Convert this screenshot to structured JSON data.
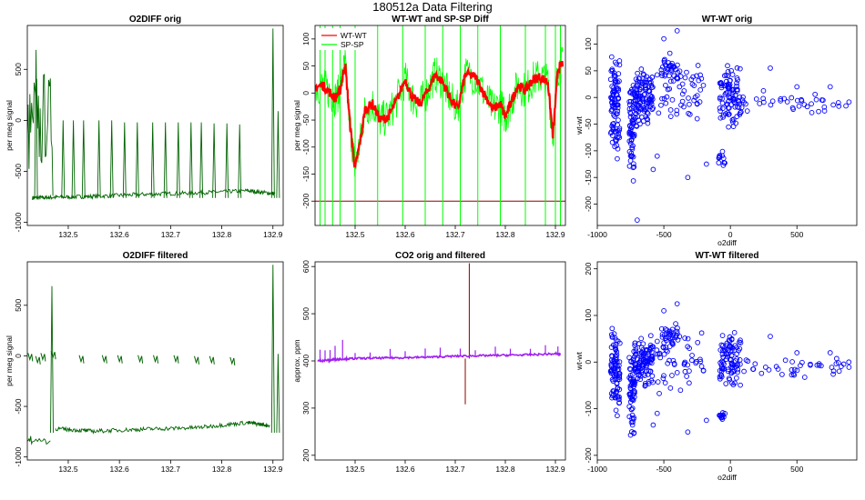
{
  "figure": {
    "title": "180512a   Data Filtering"
  },
  "colors": {
    "green": "#006400",
    "red": "#ff0000",
    "lime": "#00ff00",
    "blue": "#0000ff",
    "purple": "#a020f0",
    "darkred": "#8b0000"
  },
  "chart_data": [
    {
      "id": "p1",
      "type": "line",
      "title": "O2DIFF orig",
      "xlabel": "",
      "ylabel": "per meg signal",
      "xlim": [
        132.42,
        132.92
      ],
      "ylim": [
        -1030,
        930
      ],
      "xticks": [
        132.5,
        132.6,
        132.7,
        132.8,
        132.9
      ],
      "xtick_labels": [
        "132.5",
        "132.6",
        "132.7",
        "132.8",
        "132.9"
      ],
      "yticks": [
        -1000,
        -500,
        0,
        500
      ],
      "ytick_labels": [
        "-1000",
        "-500",
        "0",
        "500"
      ],
      "series": [
        {
          "name": "O2DIFF",
          "color": "#006400",
          "baseline": -760,
          "points": [
            [
              132.43,
              -760
            ],
            [
              132.47,
              -755
            ],
            [
              132.55,
              -745
            ],
            [
              132.65,
              -725
            ],
            [
              132.75,
              -710
            ],
            [
              132.85,
              -690
            ],
            [
              132.905,
              -720
            ]
          ],
          "start": [
            [
              132.42,
              -120
            ],
            [
              132.43,
              40
            ],
            [
              132.44,
              -80
            ],
            [
              132.45,
              40
            ],
            [
              132.46,
              0
            ],
            [
              132.47,
              -740
            ]
          ],
          "spikes": [
            [
              132.437,
              690
            ],
            [
              132.49,
              0
            ],
            [
              132.51,
              0
            ],
            [
              132.53,
              0
            ],
            [
              132.56,
              0
            ],
            [
              132.585,
              0
            ],
            [
              132.61,
              -20
            ],
            [
              132.635,
              -20
            ],
            [
              132.665,
              -20
            ],
            [
              132.69,
              -20
            ],
            [
              132.715,
              -20
            ],
            [
              132.74,
              -20
            ],
            [
              132.76,
              -20
            ],
            [
              132.785,
              -30
            ],
            [
              132.81,
              -30
            ],
            [
              132.835,
              -40
            ],
            [
              132.9,
              900
            ],
            [
              132.91,
              90
            ]
          ]
        }
      ]
    },
    {
      "id": "p2",
      "type": "line",
      "title": "WT-WT and SP-SP Diff",
      "xlabel": "",
      "ylabel": "per meg signal",
      "xlim": [
        132.42,
        132.92
      ],
      "ylim": [
        -245,
        125
      ],
      "xticks": [
        132.5,
        132.6,
        132.7,
        132.8,
        132.9
      ],
      "xtick_labels": [
        "132.5",
        "132.6",
        "132.7",
        "132.8",
        "132.9"
      ],
      "yticks": [
        -200,
        -150,
        -100,
        -50,
        0,
        50,
        100
      ],
      "ytick_labels": [
        "-200",
        "-150",
        "-100",
        "-50",
        "0",
        "50",
        "100"
      ],
      "hline": -200,
      "legend": [
        {
          "label": "WT-WT",
          "color": "#ff0000"
        },
        {
          "label": "SP-SP",
          "color": "#00ff00"
        }
      ],
      "series": [
        {
          "name": "WT-WT",
          "color": "#ff0000",
          "x": [
            132.42,
            132.435,
            132.45,
            132.46,
            132.47,
            132.48,
            132.49,
            132.5,
            132.51,
            132.52,
            132.535,
            132.55,
            132.565,
            132.58,
            132.6,
            132.615,
            132.63,
            132.645,
            132.66,
            132.675,
            132.69,
            132.705,
            132.72,
            132.74,
            132.76,
            132.775,
            132.79,
            132.8,
            132.81,
            132.825,
            132.84,
            132.855,
            132.87,
            132.885,
            132.895,
            132.905,
            132.915
          ],
          "y": [
            10,
            15,
            0,
            -10,
            5,
            55,
            -60,
            -140,
            -90,
            -30,
            -20,
            -50,
            -45,
            -20,
            25,
            -10,
            -20,
            5,
            35,
            20,
            -10,
            -30,
            35,
            30,
            -5,
            -30,
            -20,
            -45,
            -20,
            15,
            5,
            25,
            30,
            20,
            -80,
            45,
            55
          ]
        },
        {
          "name": "SP-SP",
          "color": "#00ff00",
          "spikes": [
            132.43,
            132.44,
            132.455,
            132.47,
            132.5,
            132.545,
            132.595,
            132.64,
            132.675,
            132.71,
            132.745,
            132.79,
            132.84,
            132.88,
            132.9,
            132.91
          ]
        }
      ]
    },
    {
      "id": "p3",
      "type": "scatter",
      "title": "WT-WT orig",
      "xlabel": "o2diff",
      "ylabel": "wt-wt",
      "xlim": [
        -1000,
        950
      ],
      "ylim": [
        -240,
        135
      ],
      "xticks": [
        -1000,
        -500,
        0,
        500
      ],
      "xtick_labels": [
        "-1000",
        "-500",
        "0",
        "500"
      ],
      "yticks": [
        -200,
        -150,
        -100,
        -50,
        0,
        50,
        100
      ],
      "ytick_labels": [
        "-200",
        "-150",
        "-100",
        "-50",
        "0",
        "50",
        "100"
      ],
      "color": "#0000ff",
      "clusters": [
        {
          "x": [
            -900,
            -830
          ],
          "y": [
            -110,
            80
          ],
          "n": 90
        },
        {
          "x": [
            -760,
            -720
          ],
          "y": [
            -175,
            40
          ],
          "n": 60
        },
        {
          "x": [
            -720,
            -580
          ],
          "y": [
            -60,
            60
          ],
          "n": 110
        },
        {
          "x": [
            -520,
            -380
          ],
          "y": [
            25,
            85
          ],
          "n": 35
        },
        {
          "x": [
            -560,
            -200
          ],
          "y": [
            -75,
            70
          ],
          "n": 50
        },
        {
          "x": [
            -80,
            80
          ],
          "y": [
            -60,
            70
          ],
          "n": 90
        },
        {
          "x": [
            -90,
            -40
          ],
          "y": [
            -130,
            -100
          ],
          "n": 12
        },
        {
          "x": [
            80,
            900
          ],
          "y": [
            -35,
            15
          ],
          "n": 40
        }
      ],
      "points": [
        [
          -400,
          125
        ],
        [
          -320,
          -150
        ],
        [
          -550,
          -110
        ],
        [
          -580,
          -135
        ],
        [
          -850,
          -75
        ],
        [
          -850,
          -115
        ],
        [
          -500,
          110
        ],
        [
          -180,
          -125
        ],
        [
          -700,
          -230
        ],
        [
          500,
          20
        ],
        [
          750,
          20
        ],
        [
          300,
          55
        ]
      ]
    },
    {
      "id": "p4",
      "type": "line",
      "title": "O2DIFF filtered",
      "xlabel": "",
      "ylabel": "per meg signal",
      "xlim": [
        132.42,
        132.92
      ],
      "ylim": [
        -1030,
        930
      ],
      "xticks": [
        132.5,
        132.6,
        132.7,
        132.8,
        132.9
      ],
      "xtick_labels": [
        "132.5",
        "132.6",
        "132.7",
        "132.8",
        "132.9"
      ],
      "yticks": [
        -1000,
        -500,
        0,
        500
      ],
      "ytick_labels": [
        "-1000",
        "-500",
        "0",
        "500"
      ],
      "series": [
        {
          "name": "O2DIFF",
          "color": "#006400",
          "baseline": -760,
          "points": [
            [
              132.475,
              -720
            ],
            [
              132.55,
              -745
            ],
            [
              132.65,
              -725
            ],
            [
              132.75,
              -710
            ],
            [
              132.85,
              -660
            ],
            [
              132.895,
              -690
            ]
          ],
          "start": [
            [
              132.42,
              -830
            ],
            [
              132.43,
              -850
            ],
            [
              132.45,
              -840
            ],
            [
              132.465,
              -840
            ]
          ],
          "segments": [
            [
              132.425,
              0
            ],
            [
              132.44,
              -30
            ],
            [
              132.45,
              0
            ],
            [
              132.47,
              20
            ],
            [
              132.525,
              -20
            ],
            [
              132.57,
              -20
            ],
            [
              132.6,
              -20
            ],
            [
              132.64,
              -20
            ],
            [
              132.67,
              -20
            ],
            [
              132.71,
              -20
            ],
            [
              132.75,
              -30
            ],
            [
              132.78,
              -30
            ],
            [
              132.82,
              -40
            ]
          ],
          "spikes": [
            [
              132.468,
              690
            ],
            [
              132.9,
              900
            ],
            [
              132.91,
              20
            ]
          ]
        }
      ]
    },
    {
      "id": "p5",
      "type": "line",
      "title": "CO2 orig and filtered",
      "xlabel": "",
      "ylabel": "approx. ppm",
      "xlim": [
        132.42,
        132.92
      ],
      "ylim": [
        190,
        610
      ],
      "xticks": [
        132.5,
        132.6,
        132.7,
        132.8,
        132.9
      ],
      "xtick_labels": [
        "132.5",
        "132.6",
        "132.7",
        "132.8",
        "132.9"
      ],
      "yticks": [
        200,
        300,
        400,
        500,
        600
      ],
      "ytick_labels": [
        "200",
        "300",
        "400",
        "500",
        "600"
      ],
      "series": [
        {
          "name": "CO2 orig",
          "color": "#8b0000",
          "spikes": [
            [
              132.728,
              607
            ],
            [
              132.72,
              308
            ]
          ]
        },
        {
          "name": "CO2 filtered",
          "color": "#a020f0",
          "x": [
            132.425,
            132.45,
            132.47,
            132.5,
            132.55,
            132.6,
            132.65,
            132.7,
            132.75,
            132.8,
            132.85,
            132.9,
            132.91
          ],
          "y": [
            400,
            402,
            404,
            405,
            406,
            407,
            408,
            410,
            411,
            412,
            413,
            415,
            414
          ],
          "bumps": [
            132.43,
            132.44,
            132.45,
            132.46,
            132.475,
            132.5,
            132.53,
            132.57,
            132.6,
            132.64,
            132.67,
            132.71,
            132.74,
            132.78,
            132.81,
            132.85,
            132.88,
            132.905
          ]
        }
      ]
    },
    {
      "id": "p6",
      "type": "scatter",
      "title": "WT-WT filtered",
      "xlabel": "o2diff",
      "ylabel": "wt-wt",
      "xlim": [
        -1000,
        950
      ],
      "ylim": [
        -210,
        215
      ],
      "xticks": [
        -1000,
        -500,
        0,
        500
      ],
      "xtick_labels": [
        "-1000",
        "-500",
        "0",
        "500"
      ],
      "yticks": [
        -200,
        -100,
        0,
        100,
        200
      ],
      "ytick_labels": [
        "-200",
        "-100",
        "0",
        "100",
        "200"
      ],
      "color": "#0000ff",
      "clusters": [
        {
          "x": [
            -900,
            -830
          ],
          "y": [
            -110,
            80
          ],
          "n": 90
        },
        {
          "x": [
            -760,
            -720
          ],
          "y": [
            -175,
            40
          ],
          "n": 60
        },
        {
          "x": [
            -720,
            -580
          ],
          "y": [
            -60,
            60
          ],
          "n": 110
        },
        {
          "x": [
            -520,
            -380
          ],
          "y": [
            25,
            85
          ],
          "n": 35
        },
        {
          "x": [
            -560,
            -200
          ],
          "y": [
            -75,
            70
          ],
          "n": 50
        },
        {
          "x": [
            -80,
            80
          ],
          "y": [
            -60,
            70
          ],
          "n": 90
        },
        {
          "x": [
            -90,
            -40
          ],
          "y": [
            -130,
            -100
          ],
          "n": 12
        },
        {
          "x": [
            80,
            900
          ],
          "y": [
            -35,
            15
          ],
          "n": 40
        }
      ],
      "points": [
        [
          -400,
          125
        ],
        [
          -320,
          -150
        ],
        [
          -550,
          -110
        ],
        [
          -580,
          -135
        ],
        [
          -850,
          -75
        ],
        [
          -850,
          -115
        ],
        [
          -500,
          110
        ],
        [
          -180,
          -125
        ],
        [
          500,
          20
        ],
        [
          750,
          20
        ],
        [
          300,
          55
        ]
      ]
    }
  ]
}
